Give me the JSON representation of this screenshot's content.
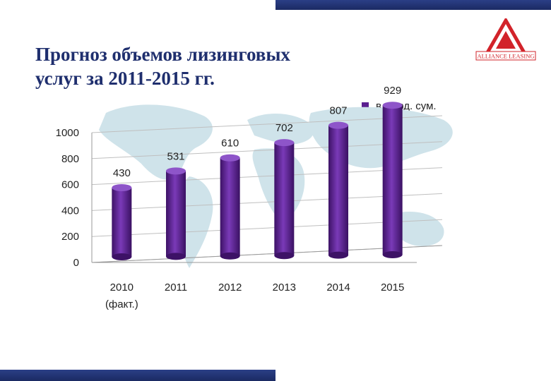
{
  "slide": {
    "title": "Прогноз объемов лизинговых\nуслуг за 2011-2015 гг.",
    "logo_text": "ALLIANCE LEASING"
  },
  "colors": {
    "bar": "#5b1f90",
    "bar_light": "#8a4cc4",
    "accent_bar": "#1f2f6e",
    "logo_red": "#d2232a",
    "map": "#cfe3ea"
  },
  "chart_data": {
    "type": "bar",
    "categories": [
      "2010\n(факт.)",
      "2011",
      "2012",
      "2013",
      "2014",
      "2015"
    ],
    "series": [
      {
        "name": "в млрд. сум.",
        "values": [
          430,
          531,
          610,
          702,
          807,
          929
        ]
      }
    ],
    "ylim": [
      0,
      1000
    ],
    "yticks": [
      0,
      200,
      400,
      600,
      800,
      1000
    ],
    "legend": "top-right",
    "grid": true
  }
}
